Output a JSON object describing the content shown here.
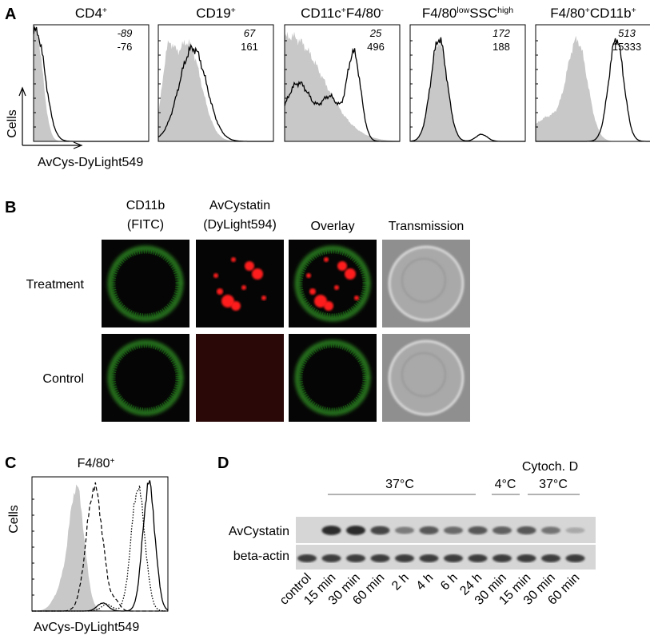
{
  "panel_a": {
    "label": "A",
    "histograms": [
      {
        "title_parts": [
          "CD4",
          "+"
        ],
        "italic_value": -89,
        "value": -76
      },
      {
        "title_parts": [
          "CD19",
          "+"
        ],
        "italic_value": 67,
        "value": 161
      },
      {
        "title_parts": [
          "CD11c",
          "+",
          "F4/80",
          "-"
        ],
        "italic_value": 25,
        "value": 496
      },
      {
        "title_parts": [
          "F4/80",
          "low",
          "SSC",
          "high"
        ],
        "italic_value": 172,
        "value": 188
      },
      {
        "title_parts": [
          "F4/80",
          "+",
          "CD11b",
          "+"
        ],
        "italic_value": 513,
        "value": 15333
      }
    ],
    "y_label": "Cells",
    "x_label": "AvCys-DyLight549"
  },
  "panel_b": {
    "label": "B",
    "columns": [
      [
        "CD11b",
        "(FITC)"
      ],
      [
        "AvCystatin",
        "(DyLight594)"
      ],
      [
        "Overlay"
      ],
      [
        "Transmission"
      ]
    ],
    "rows": [
      "Treatment",
      "Control"
    ]
  },
  "panel_c": {
    "label": "C",
    "title_parts": [
      "F4/80",
      "+"
    ],
    "y_label": "Cells",
    "x_label": "AvCys-DyLight549"
  },
  "panel_d": {
    "label": "D",
    "groups": [
      "37°C",
      "4°C",
      "Cytoch. D",
      "37°C"
    ],
    "bands": [
      "AvCystatin",
      "beta-actin"
    ],
    "lanes": [
      "control",
      "15 min",
      "30 min",
      "60 min",
      "2 h",
      "4 h",
      "6 h",
      "24 h",
      "30 min",
      "15 min",
      "30 min",
      "60 min"
    ]
  }
}
